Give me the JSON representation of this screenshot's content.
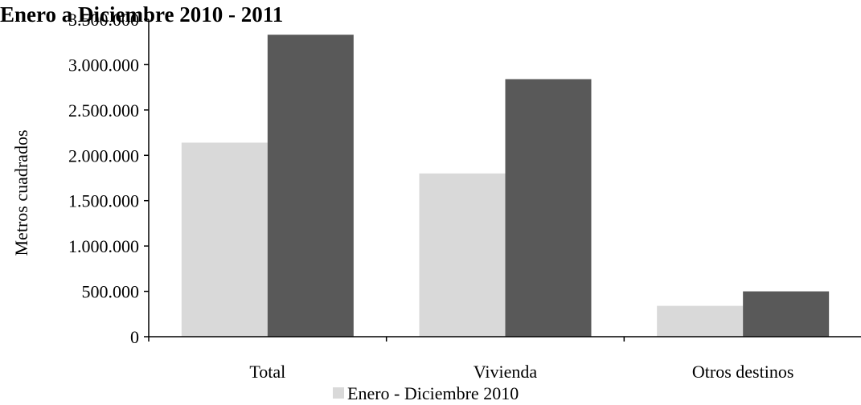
{
  "chart_data": {
    "type": "bar",
    "title": "Enero a Diciembre 2010 - 2011",
    "xlabel": "",
    "ylabel": "Metros  cuadrados",
    "categories": [
      "Total",
      "Vivienda",
      "Otros destinos"
    ],
    "series": [
      {
        "name": "Enero - Diciembre 2010",
        "color": "#d9d9d9",
        "values": [
          2140000,
          1800000,
          340000
        ]
      },
      {
        "name": "",
        "color": "#595959",
        "values": [
          3330000,
          2840000,
          500000
        ]
      }
    ],
    "ylim": [
      0,
      3500000
    ],
    "yticks": [
      0,
      500000,
      1000000,
      1500000,
      2000000,
      2500000,
      3000000,
      3500000
    ],
    "ytick_labels": [
      "0",
      "500.000",
      "1.000.000",
      "1.500.000",
      "2.000.000",
      "2.500.000",
      "3.000.000",
      "3.500.000"
    ],
    "grid": false,
    "legend_position": "bottom"
  }
}
